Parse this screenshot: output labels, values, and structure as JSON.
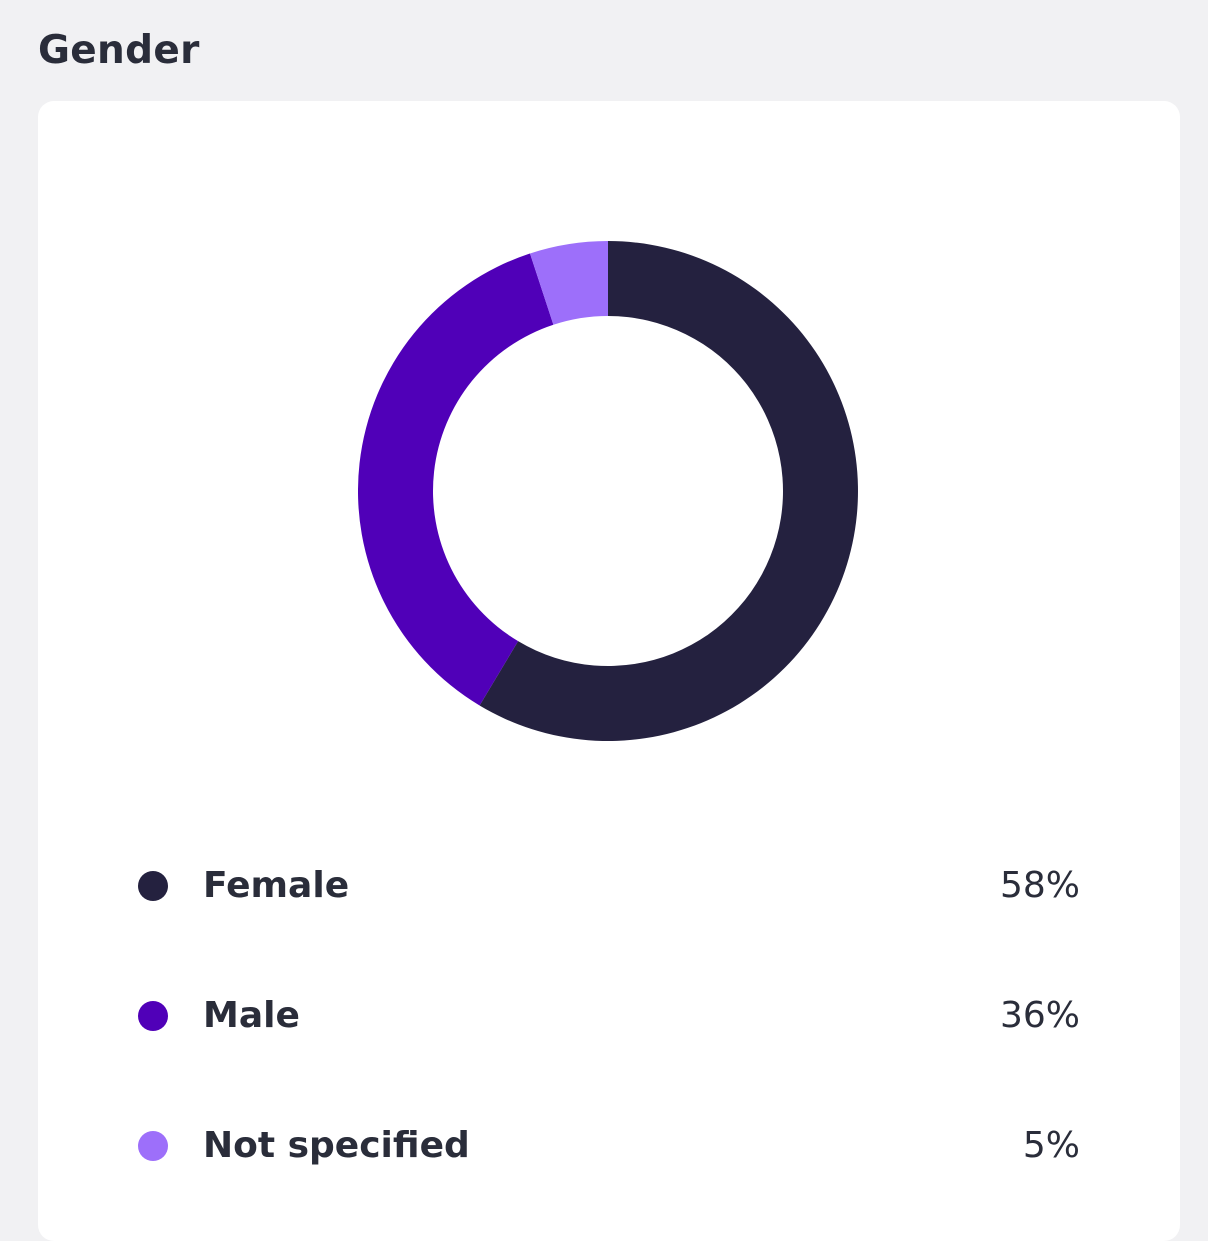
{
  "section": {
    "title": "Gender"
  },
  "chart_data": {
    "type": "pie",
    "title": "",
    "categories": [
      "Female",
      "Male",
      "Not specified"
    ],
    "values": [
      58,
      36,
      5
    ],
    "value_labels": [
      "58%",
      "36%",
      "5%"
    ],
    "unit": "%",
    "colors": [
      "#24213f",
      "#5000b8",
      "#9d6ffa"
    ],
    "style": "donut",
    "start_angle": "top, clockwise",
    "legend": "below"
  }
}
